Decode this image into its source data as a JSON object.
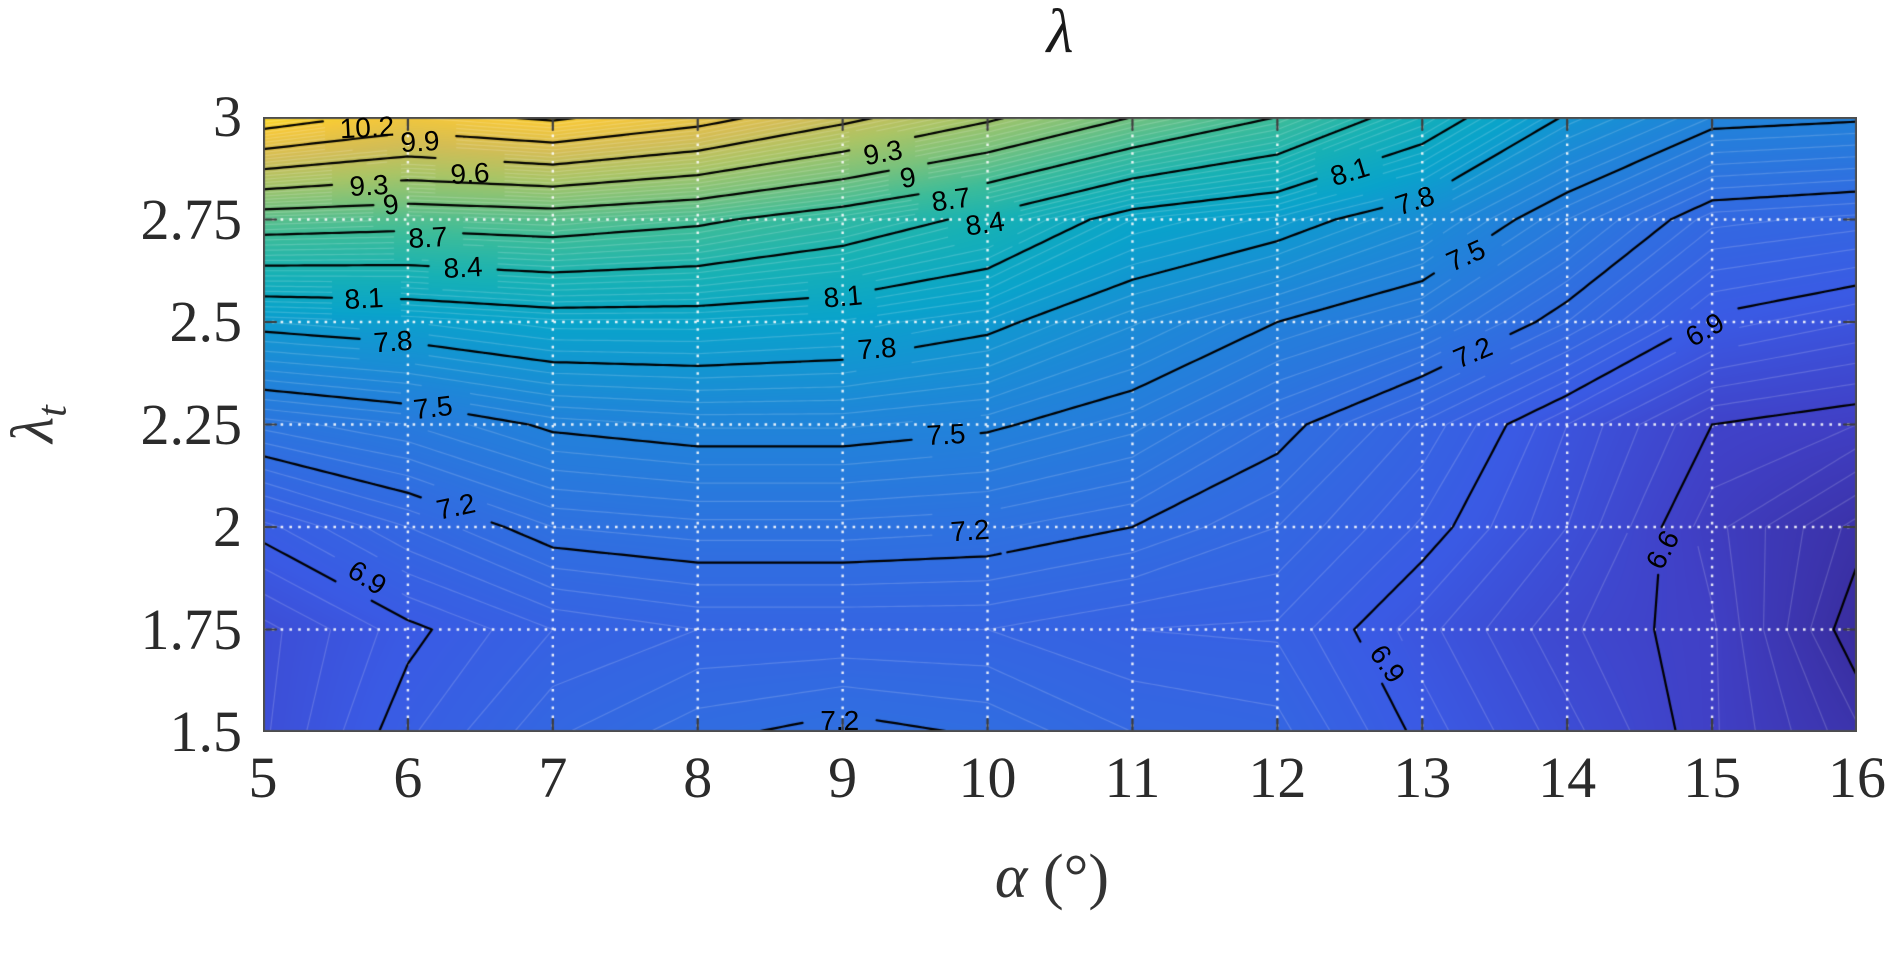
{
  "figure": {
    "title": "λ",
    "xlabel_symbol": "α",
    "xlabel_unit": " (°)",
    "ylabel_symbol": "λ",
    "ylabel_subscript": "t",
    "background": "#ffffff"
  },
  "axes": {
    "x_ticks": [
      "5",
      "6",
      "7",
      "8",
      "9",
      "10",
      "11",
      "12",
      "13",
      "14",
      "15",
      "16"
    ],
    "y_ticks": [
      "1.5",
      "1.75",
      "2",
      "2.25",
      "2.5",
      "2.75",
      "3"
    ],
    "x_range": [
      5,
      16
    ],
    "y_range": [
      1.5,
      3
    ],
    "grid_style": "white-dotted",
    "tick_color": "#3d3d3d",
    "box_color": "#4d4d4d"
  },
  "chart_data": {
    "type": "contour-filled",
    "title": "λ",
    "xlabel": "α (°)",
    "ylabel": "λ_t",
    "x": [
      5,
      6,
      7,
      8,
      9,
      10,
      11,
      12,
      13,
      14,
      15,
      16
    ],
    "y": [
      1.5,
      1.75,
      2,
      2.25,
      2.5,
      2.75,
      3
    ],
    "z": [
      [
        6.74,
        6.94,
        7.09,
        7.18,
        7.23,
        7.19,
        7.1,
        7.07,
        6.88,
        6.72,
        6.56,
        6.36
      ],
      [
        6.73,
        6.88,
        7.0,
        7.05,
        7.05,
        7.05,
        7.0,
        6.99,
        6.82,
        6.66,
        6.56,
        6.25
      ],
      [
        6.93,
        7.1,
        7.25,
        7.28,
        7.28,
        7.26,
        7.2,
        7.1,
        6.94,
        6.75,
        6.52,
        6.33
      ],
      [
        7.32,
        7.4,
        7.52,
        7.56,
        7.56,
        7.52,
        7.42,
        7.24,
        7.04,
        6.8,
        6.6,
        6.55
      ],
      [
        7.85,
        7.9,
        7.98,
        7.98,
        7.94,
        7.84,
        7.66,
        7.5,
        7.38,
        7.15,
        6.88,
        6.8
      ],
      [
        8.85,
        8.8,
        8.85,
        8.75,
        8.56,
        8.34,
        8.0,
        7.88,
        7.68,
        7.4,
        7.12,
        7.08
      ],
      [
        10.38,
        10.1,
        10.25,
        10.02,
        9.68,
        9.35,
        9.0,
        8.7,
        8.25,
        7.78,
        7.55,
        7.52
      ]
    ],
    "contour_line_levels": [
      6.3,
      6.6,
      6.9,
      7.2,
      7.5,
      7.8,
      8.1,
      8.4,
      8.7,
      9.0,
      9.3,
      9.6,
      9.9,
      10.2
    ],
    "fill_level_step": 0.05,
    "color_axis": [
      6.25,
      10.75
    ],
    "colormap": "parula",
    "colormap_anchors": [
      [
        0.0,
        "#392d9e"
      ],
      [
        0.07,
        "#4040c6"
      ],
      [
        0.14,
        "#3a5ae4"
      ],
      [
        0.22,
        "#2f70e0"
      ],
      [
        0.3,
        "#1e87d8"
      ],
      [
        0.38,
        "#09a3cb"
      ],
      [
        0.46,
        "#17b1b5"
      ],
      [
        0.54,
        "#3cbc9a"
      ],
      [
        0.62,
        "#7ac27c"
      ],
      [
        0.7,
        "#abc465"
      ],
      [
        0.78,
        "#d3bd55"
      ],
      [
        0.86,
        "#f3c73c"
      ],
      [
        0.93,
        "#fcdd20"
      ],
      [
        1.0,
        "#f8ec16"
      ]
    ],
    "contour_labels": [
      {
        "text": "10.2",
        "level": 10.2,
        "x": 5.72,
        "y": 2.972,
        "rot": -3
      },
      {
        "text": "9.9",
        "level": 9.9,
        "x": 6.08,
        "y": 2.938,
        "rot": -3
      },
      {
        "text": "9.6",
        "level": 9.6,
        "x": 6.43,
        "y": 2.862,
        "rot": -3
      },
      {
        "text": "9.3",
        "level": 9.3,
        "x": 5.73,
        "y": 2.832,
        "rot": -3
      },
      {
        "text": "9",
        "level": 9.0,
        "x": 5.88,
        "y": 2.786,
        "rot": -8
      },
      {
        "text": "8.7",
        "level": 8.7,
        "x": 6.14,
        "y": 2.705,
        "rot": -3
      },
      {
        "text": "8.4",
        "level": 8.4,
        "x": 6.38,
        "y": 2.632,
        "rot": -3
      },
      {
        "text": "8.1",
        "level": 8.1,
        "x": 5.7,
        "y": 2.556,
        "rot": -3
      },
      {
        "text": "7.8",
        "level": 7.8,
        "x": 5.9,
        "y": 2.452,
        "rot": -4
      },
      {
        "text": "7.5",
        "level": 7.5,
        "x": 6.17,
        "y": 2.29,
        "rot": -7
      },
      {
        "text": "7.2",
        "level": 7.2,
        "x": 6.33,
        "y": 2.048,
        "rot": -12
      },
      {
        "text": "6.9",
        "level": 6.9,
        "x": 5.72,
        "y": 1.876,
        "rot": 33
      },
      {
        "text": "9.3",
        "level": 9.3,
        "x": 9.28,
        "y": 2.912,
        "rot": -10
      },
      {
        "text": "9",
        "level": 9.0,
        "x": 9.45,
        "y": 2.852,
        "rot": -10
      },
      {
        "text": "8.7",
        "level": 8.7,
        "x": 9.75,
        "y": 2.798,
        "rot": -8
      },
      {
        "text": "8.4",
        "level": 8.4,
        "x": 9.98,
        "y": 2.74,
        "rot": -8
      },
      {
        "text": "8.1",
        "level": 8.1,
        "x": 9.0,
        "y": 2.562,
        "rot": -5
      },
      {
        "text": "7.8",
        "level": 7.8,
        "x": 9.24,
        "y": 2.434,
        "rot": -4
      },
      {
        "text": "7.5",
        "level": 7.5,
        "x": 9.71,
        "y": 2.225,
        "rot": -3
      },
      {
        "text": "7.2",
        "level": 7.2,
        "x": 9.88,
        "y": 1.99,
        "rot": -4
      },
      {
        "text": "7.2",
        "level": 7.2,
        "x": 8.98,
        "y": 1.528,
        "rot": 0
      },
      {
        "text": "8.1",
        "level": 8.1,
        "x": 12.5,
        "y": 2.865,
        "rot": -17
      },
      {
        "text": "7.8",
        "level": 7.8,
        "x": 12.95,
        "y": 2.795,
        "rot": -18
      },
      {
        "text": "7.5",
        "level": 7.5,
        "x": 13.3,
        "y": 2.66,
        "rot": -24
      },
      {
        "text": "7.2",
        "level": 7.2,
        "x": 13.35,
        "y": 2.425,
        "rot": -23
      },
      {
        "text": "6.9",
        "level": 6.9,
        "x": 14.95,
        "y": 2.48,
        "rot": -30
      },
      {
        "text": "6.9",
        "level": 6.9,
        "x": 12.76,
        "y": 1.665,
        "rot": 55
      },
      {
        "text": "6.6",
        "level": 6.6,
        "x": 14.66,
        "y": 1.945,
        "rot": -62
      }
    ]
  }
}
